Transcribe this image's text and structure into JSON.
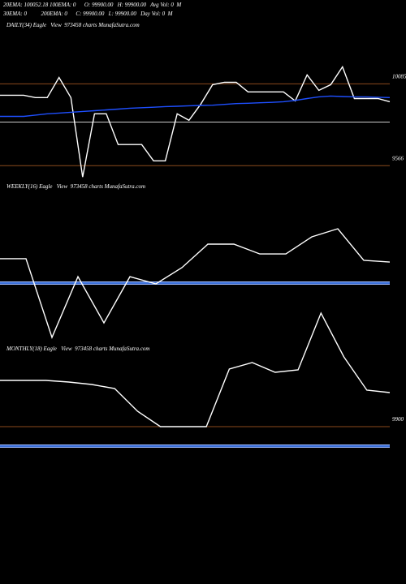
{
  "header": {
    "line1": "20EMA: 100052.18 100EMA: 0      O: 99900.00   H: 99900.00   Avg Vol: 0  M",
    "line2": "30EMA: 0          200EMA: 0      C: 99900.00   L: 99900.00   Day Vol: 0  M"
  },
  "chart_data": [
    {
      "type": "line",
      "label": "DAILY(34) Eagle   View  973458 charts MunafaSutra.com",
      "ylim": [
        9480,
        10540
      ],
      "yticks": [
        10085,
        9566
      ],
      "grid_color": "#8b4a1c",
      "hlines": [
        {
          "value": 9843,
          "color": "#cccccc"
        }
      ],
      "series": [
        {
          "color": "#ffffff",
          "values": [
            10013,
            10013,
            10013,
            9998,
            9998,
            10126,
            9998,
            9494,
            9895,
            9895,
            9700,
            9700,
            9700,
            9597,
            9597,
            9895,
            9854,
            9957,
            10080,
            10095,
            10095,
            10034,
            10034,
            10034,
            10034,
            9977,
            10142,
            10044,
            10080,
            10193,
            9992,
            9992,
            9992,
            9972
          ]
        },
        {
          "color": "#1e4fff",
          "values": [
            9879,
            9879,
            9879,
            9887,
            9895,
            9900,
            9905,
            9910,
            9915,
            9920,
            9925,
            9931,
            9934,
            9937,
            9941,
            9943,
            9946,
            9948,
            9950,
            9955,
            9960,
            9962,
            9965,
            9968,
            9972,
            9980,
            9992,
            10003,
            10008,
            10005,
            10003,
            10003,
            10000,
            9998
          ]
        }
      ]
    },
    {
      "type": "line",
      "label": "WEEKLY(16) Eagle   View  973458 charts MunafaSutra.com",
      "ylim": [
        9300,
        10400
      ],
      "yticks": [],
      "grid_color": "#8b4a1c",
      "hlines": [
        {
          "value": 9740,
          "color": "#3a6fd8"
        }
      ],
      "series": [
        {
          "color": "#ffffff",
          "values": [
            9914,
            9914,
            9352,
            9786,
            9456,
            9786,
            9734,
            9850,
            10018,
            10018,
            9948,
            9948,
            10070,
            10128,
            9902,
            9890
          ]
        }
      ]
    },
    {
      "type": "line",
      "label": "MONTHLY(18) Eagle   View  973458 charts MunafaSutra.com",
      "ylim": [
        9700,
        10800
      ],
      "yticks": [
        9900
      ],
      "grid_color": "#8b4a1c",
      "hlines": [
        {
          "value": 9780,
          "color": "#3a6fd8"
        }
      ],
      "series": [
        {
          "color": "#ffffff",
          "values": [
            10185,
            10185,
            10185,
            10175,
            10160,
            10135,
            9995,
            9900,
            9900,
            9900,
            10255,
            10295,
            10235,
            10250,
            10600,
            10330,
            10125,
            10110
          ]
        }
      ]
    }
  ]
}
